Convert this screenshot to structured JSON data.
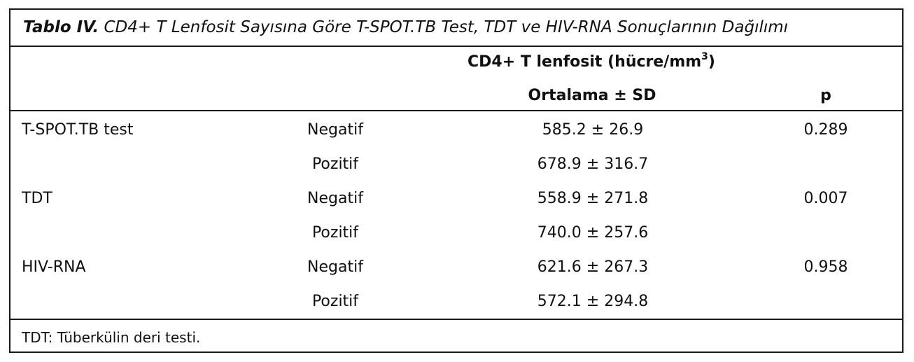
{
  "table": {
    "caption_label": "Tablo IV.",
    "caption_text": "CD4+ T Lenfosit Sayısına Göre T-SPOT.TB Test, TDT ve HIV-RNA Sonuçlarının Dağılımı",
    "header_group_main": "CD4+ T lenfosit (hücre/mm",
    "header_group_sup": "3",
    "header_group_end": ")",
    "header_mean_sd": "Ortalama ± SD",
    "header_p": "p",
    "rows": [
      {
        "test": "T-SPOT.TB test",
        "result": "Negatif",
        "value": "585.2 ± 26.9",
        "p": "0.289"
      },
      {
        "test": "",
        "result": "Pozitif",
        "value": "678.9 ± 316.7",
        "p": ""
      },
      {
        "test": "TDT",
        "result": "Negatif",
        "value": "558.9 ± 271.8",
        "p": "0.007"
      },
      {
        "test": "",
        "result": "Pozitif",
        "value": "740.0 ± 257.6",
        "p": ""
      },
      {
        "test": "HIV-RNA",
        "result": "Negatif",
        "value": "621.6 ± 267.3",
        "p": "0.958"
      },
      {
        "test": "",
        "result": "Pozitif",
        "value": "572.1 ± 294.8",
        "p": ""
      }
    ],
    "footnote": "TDT: Tüberkülin deri testi."
  }
}
